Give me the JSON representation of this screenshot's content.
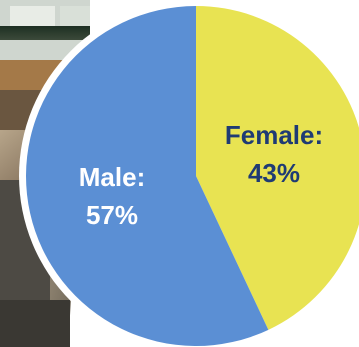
{
  "chart_data": {
    "type": "pie",
    "slices": [
      {
        "label": "Female:",
        "value": 43,
        "value_text": "43%",
        "color": "#e8e352",
        "text_color": "#1f3b74"
      },
      {
        "label": "Male:",
        "value": 57,
        "value_text": "57%",
        "color": "#5b8fd4",
        "text_color": "#ffffff"
      }
    ],
    "start": "12 o'clock",
    "direction": "clockwise",
    "title": "",
    "legend": "none"
  }
}
